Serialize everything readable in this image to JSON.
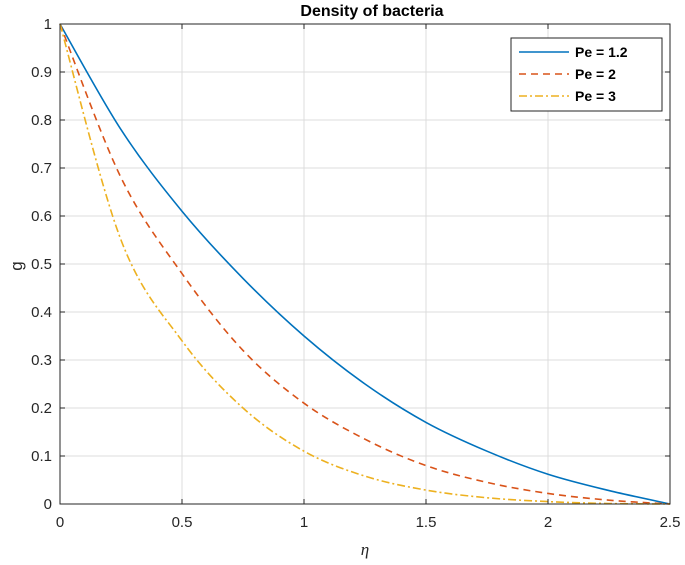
{
  "chart_data": {
    "type": "line",
    "title": "Density of bacteria",
    "xlabel": "η",
    "ylabel": "g",
    "xlim": [
      0,
      2.5
    ],
    "ylim": [
      0,
      1
    ],
    "xticks": [
      0,
      0.5,
      1,
      1.5,
      2,
      2.5
    ],
    "yticks": [
      0,
      0.1,
      0.2,
      0.3,
      0.4,
      0.5,
      0.6,
      0.7,
      0.8,
      0.9,
      1
    ],
    "xtick_labels": [
      "0",
      "0.5",
      "1",
      "1.5",
      "2",
      "2.5"
    ],
    "ytick_labels": [
      "0",
      "0.1",
      "0.2",
      "0.3",
      "0.4",
      "0.5",
      "0.6",
      "0.7",
      "0.8",
      "0.9",
      "1"
    ],
    "grid": true,
    "legend_position": "top-right",
    "x": [
      0,
      0.25,
      0.5,
      0.75,
      1,
      1.25,
      1.5,
      1.75,
      2,
      2.25,
      2.5
    ],
    "series": [
      {
        "name": "Pe = 1.2",
        "color": "#0072BD",
        "style": "solid",
        "values": [
          1,
          0.78,
          0.61,
          0.47,
          0.35,
          0.25,
          0.17,
          0.11,
          0.062,
          0.028,
          0
        ]
      },
      {
        "name": "Pe = 2",
        "color": "#D95319",
        "style": "dashed",
        "values": [
          1,
          0.68,
          0.48,
          0.32,
          0.21,
          0.135,
          0.08,
          0.045,
          0.022,
          0.008,
          0
        ]
      },
      {
        "name": "Pe = 3",
        "color": "#EDB120",
        "style": "dashdot",
        "values": [
          1,
          0.55,
          0.34,
          0.2,
          0.11,
          0.058,
          0.029,
          0.013,
          0.005,
          0.001,
          0
        ]
      }
    ]
  }
}
